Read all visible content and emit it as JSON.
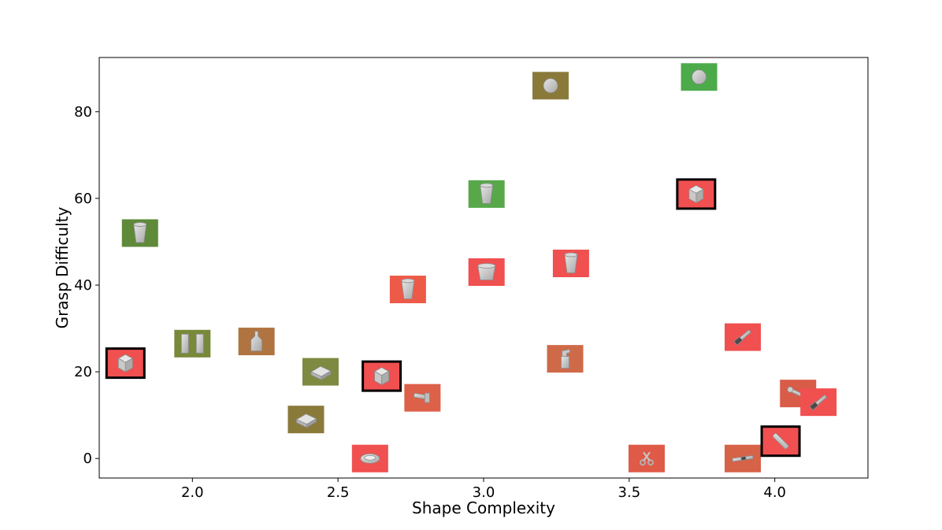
{
  "chart_data": {
    "type": "scatter",
    "title": "",
    "xlabel": "Shape Complexity",
    "ylabel": "Grasp Difficulty",
    "xlim": [
      1.68,
      4.32
    ],
    "ylim": [
      -4.5,
      92.5
    ],
    "xticks": [
      2.0,
      2.5,
      3.0,
      3.5,
      4.0
    ],
    "xtick_labels": [
      "2.0",
      "2.5",
      "3.0",
      "3.5",
      "4.0"
    ],
    "yticks": [
      0,
      20,
      40,
      60,
      80
    ],
    "ytick_labels": [
      "0",
      "20",
      "40",
      "60",
      "80"
    ],
    "grid": false,
    "legend": "none",
    "marker_note": "Each point is a thumbnail of an object; background color encodes outcome; black border marks highlighted objects.",
    "points": [
      {
        "x": 1.82,
        "y": 52.0,
        "color": "#5e8a3a",
        "object": "cup",
        "highlight": false
      },
      {
        "x": 1.77,
        "y": 22.0,
        "color": "#f05050",
        "object": "box",
        "highlight": true
      },
      {
        "x": 2.0,
        "y": 26.5,
        "color": "#788a3a",
        "object": "box-pair",
        "highlight": false
      },
      {
        "x": 2.22,
        "y": 27.0,
        "color": "#b07440",
        "object": "bottle",
        "highlight": false
      },
      {
        "x": 2.44,
        "y": 20.0,
        "color": "#7d8a40",
        "object": "tray",
        "highlight": false
      },
      {
        "x": 2.39,
        "y": 9.0,
        "color": "#8a7a3a",
        "object": "tray",
        "highlight": false
      },
      {
        "x": 2.65,
        "y": 19.0,
        "color": "#f05050",
        "object": "box",
        "highlight": true
      },
      {
        "x": 2.61,
        "y": 0.0,
        "color": "#f05050",
        "object": "plate",
        "highlight": false
      },
      {
        "x": 2.74,
        "y": 39.0,
        "color": "#ee5a48",
        "object": "cup",
        "highlight": false
      },
      {
        "x": 2.79,
        "y": 14.0,
        "color": "#dd6048",
        "object": "tool",
        "highlight": false
      },
      {
        "x": 3.01,
        "y": 61.0,
        "color": "#58a84a",
        "object": "cup",
        "highlight": false
      },
      {
        "x": 3.01,
        "y": 43.0,
        "color": "#f05050",
        "object": "bowl",
        "highlight": false
      },
      {
        "x": 3.23,
        "y": 86.0,
        "color": "#8a7a3a",
        "object": "ball",
        "highlight": false
      },
      {
        "x": 3.3,
        "y": 45.0,
        "color": "#f05050",
        "object": "cup",
        "highlight": false
      },
      {
        "x": 3.28,
        "y": 23.0,
        "color": "#cf6a48",
        "object": "spray-bottle",
        "highlight": false
      },
      {
        "x": 3.74,
        "y": 88.0,
        "color": "#4caa4a",
        "object": "ball",
        "highlight": false
      },
      {
        "x": 3.73,
        "y": 61.0,
        "color": "#f05050",
        "object": "box",
        "highlight": true
      },
      {
        "x": 3.89,
        "y": 28.0,
        "color": "#f05050",
        "object": "screwdriver",
        "highlight": false
      },
      {
        "x": 3.56,
        "y": 0.0,
        "color": "#e05a48",
        "object": "scissors",
        "highlight": false
      },
      {
        "x": 3.89,
        "y": 0.0,
        "color": "#d66248",
        "object": "knife",
        "highlight": false
      },
      {
        "x": 4.02,
        "y": 4.0,
        "color": "#f05050",
        "object": "marker",
        "highlight": true
      },
      {
        "x": 4.08,
        "y": 15.0,
        "color": "#d85c48",
        "object": "wrench",
        "highlight": false
      },
      {
        "x": 4.15,
        "y": 13.0,
        "color": "#f05050",
        "object": "screwdriver",
        "highlight": false
      }
    ]
  }
}
